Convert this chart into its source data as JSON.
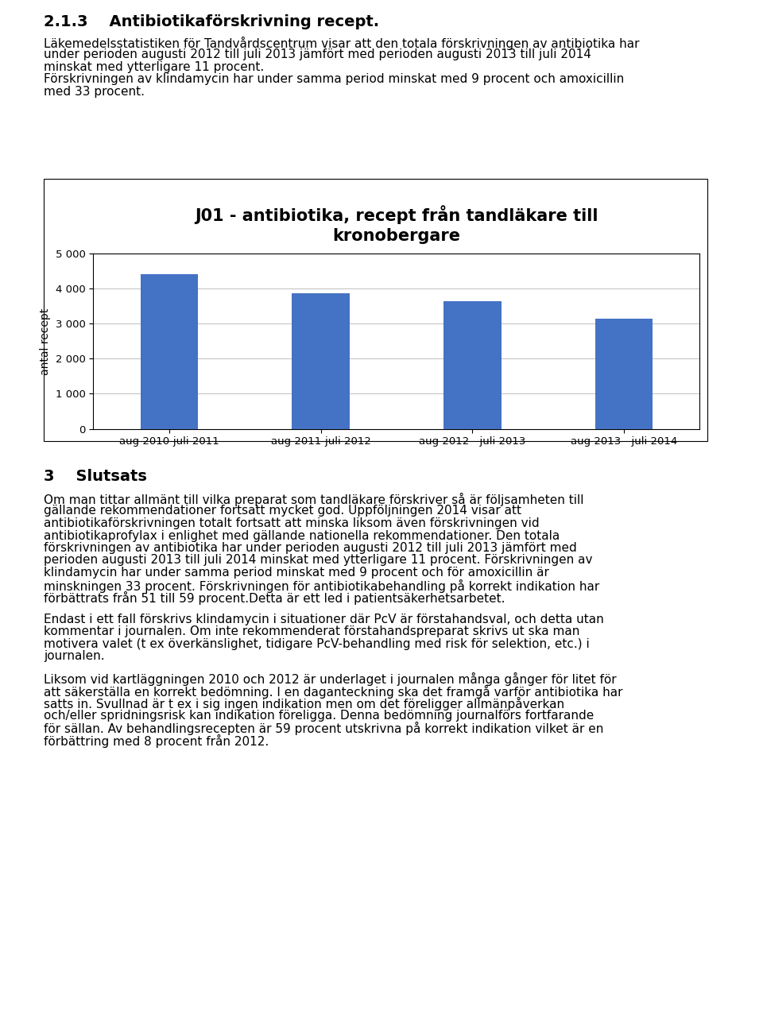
{
  "title_section": "2.1.3    Antibiotikaförskrivning recept.",
  "intro_lines": [
    "Läkemedelsstatistiken för Tandvårdscentrum visar att den totala förskrivningen av antibiotika har",
    "under perioden augusti 2012 till juli 2013 jämfört med perioden augusti 2013 till juli 2014",
    "minskat med ytterligare 11 procent.",
    "Förskrivningen av klindamycin har under samma period minskat med 9 procent och amoxicillin",
    "med 33 procent."
  ],
  "chart_title": "J01 - antibiotika, recept från tandläkare till\nkronobergare",
  "categories": [
    "aug 2010-juli 2011",
    "aug 2011-juli 2012",
    "aug 2012 - juli 2013",
    "aug 2013 - juli 2014"
  ],
  "values": [
    4420,
    3870,
    3640,
    3150
  ],
  "bar_color": "#4472C4",
  "ylabel": "antal recept",
  "ylim": [
    0,
    5000
  ],
  "yticks": [
    0,
    1000,
    2000,
    3000,
    4000,
    5000
  ],
  "ytick_labels": [
    "0",
    "1 000",
    "2 000",
    "3 000",
    "4 000",
    "5 000"
  ],
  "section3_title": "3    Slutsats",
  "section3_lines": [
    "Om man tittar allmänt till vilka preparat som tandläkare förskriver så är följsamheten till",
    "gällande rekommendationer fortsatt mycket god. Uppföljningen 2014 visar att",
    "antibiotikaförskrivningen totalt fortsatt att minska liksom även förskrivningen vid",
    "antibiotikaprofylax i enlighet med gällande nationella rekommendationer. Den totala",
    "förskrivningen av antibiotika har under perioden augusti 2012 till juli 2013 jämfört med",
    "perioden augusti 2013 till juli 2014 minskat med ytterligare 11 procent. Förskrivningen av",
    "klindamycin har under samma period minskat med 9 procent och för amoxicillin är",
    "minskningen 33 procent. Förskrivningen för antibiotikabehandling på korrekt indikation har",
    "förbättrats från 51 till 59 procent.Detta är ett led i patientsäkerhetsarbetet."
  ],
  "para2_lines": [
    "Endast i ett fall förskrivs klindamycin i situationer där PcV är förstahandsval, och detta utan",
    "kommentar i journalen. Om inte rekommenderat förstahandspreparat skrivs ut ska man",
    "motivera valet (t ex överkänslighet, tidigare PcV-behandling med risk för selektion, etc.) i",
    "journalen."
  ],
  "para3_lines": [
    "Liksom vid kartläggningen 2010 och 2012 är underlaget i journalen många gånger för litet för",
    "att säkerställa en korrekt bedömning. I en daganteckning ska det framgå varför antibiotika har",
    "satts in. Svullnad är t ex i sig ingen indikation men om det föreligger allmänpåverkan",
    "och/eller spridningsrisk kan indikation föreligga. Denna bedömning journalförs fortfarande",
    "för sällan. Av behandlingsrecepten är 59 procent utskrivna på korrekt indikation vilket är en",
    "förbättring med 8 procent från 2012."
  ],
  "background_color": "#ffffff",
  "text_color": "#000000",
  "chart_bg": "#ffffff",
  "chart_border": "#000000",
  "grid_color": "#c0c0c0",
  "body_fontsize": 11,
  "title_fontsize": 14,
  "chart_title_fontsize": 15
}
